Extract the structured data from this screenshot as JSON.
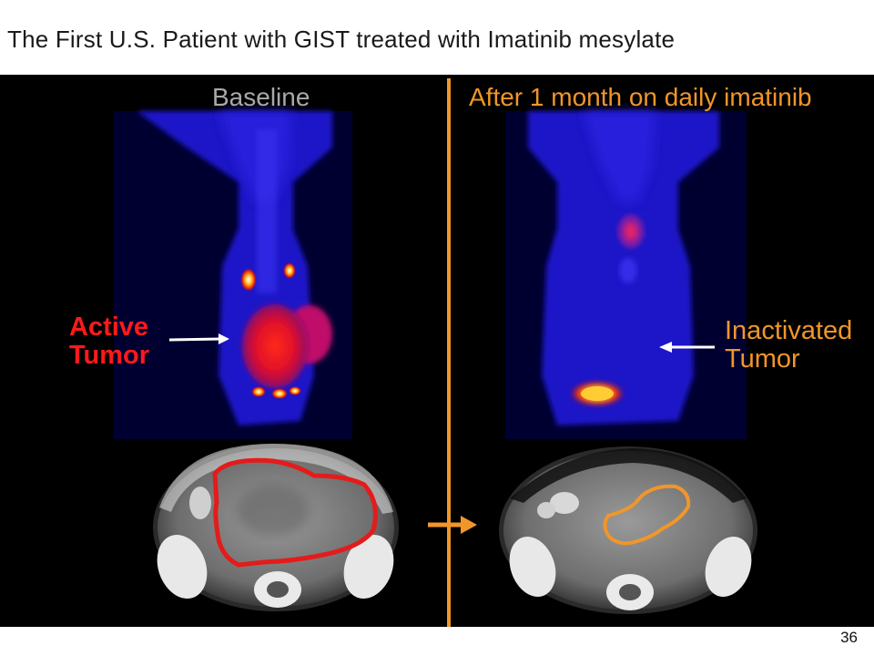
{
  "slide": {
    "title": "The First U.S. Patient with GIST treated with Imatinib mesylate",
    "page_number": "36"
  },
  "panels": {
    "baseline_label": "Baseline",
    "after_label": "After 1 month on daily imatinib",
    "active_tumor_label_line1": "Active",
    "active_tumor_label_line2": "Tumor",
    "inactivated_tumor_label_line1": "Inactivated",
    "inactivated_tumor_label_line2": "Tumor"
  },
  "colors": {
    "background_panel": "#000000",
    "active_accent": "#ff1a1a",
    "after_accent": "#f0962a",
    "baseline_text": "#a9a9a9",
    "pet_blue": "#1a1adc"
  }
}
